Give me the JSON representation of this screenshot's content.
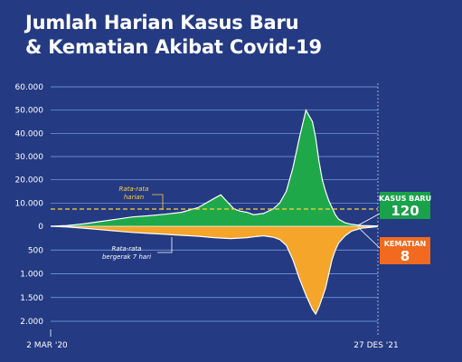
{
  "title_line1": "Jumlah Harian Kasus Baru",
  "title_line2": "& Kematian Akibat Covid-19",
  "colors": {
    "background": "#243a82",
    "cases": "#1fa84a",
    "deaths": "#f4a52a",
    "cases_badge": "#19a24a",
    "deaths_badge": "#f26a1f",
    "average_line": "#ffd23c",
    "gridline": "#7da6e8"
  },
  "chart_data": {
    "type": "area",
    "x_start_label": "2 MAR '20",
    "x_end_label": "27 DES '21",
    "upper_ticks": [
      "60.000",
      "50.000",
      "40.000",
      "30.000",
      "20.000",
      "10.000",
      "0"
    ],
    "lower_ticks": [
      "500",
      "1.000",
      "1.500",
      "2.000"
    ],
    "upper_ylim": [
      0,
      60000
    ],
    "lower_ylim": [
      0,
      2000
    ],
    "average_cases": 7400,
    "series": [
      {
        "key": "cases",
        "x": [
          0.0,
          0.05,
          0.1,
          0.15,
          0.2,
          0.25,
          0.3,
          0.35,
          0.4,
          0.45,
          0.5,
          0.52,
          0.54,
          0.56,
          0.58,
          0.6,
          0.62,
          0.65,
          0.68,
          0.7,
          0.72,
          0.74,
          0.76,
          0.78,
          0.8,
          0.81,
          0.82,
          0.83,
          0.84,
          0.85,
          0.86,
          0.87,
          0.88,
          0.9,
          0.92,
          0.95,
          1.0
        ],
        "values": [
          0,
          300,
          1000,
          2000,
          3000,
          4000,
          4500,
          5200,
          6000,
          8000,
          12000,
          13500,
          10500,
          7500,
          6500,
          6000,
          5000,
          5500,
          7500,
          10000,
          15000,
          25000,
          38000,
          50000,
          45000,
          38000,
          28000,
          20000,
          15000,
          11000,
          8000,
          5000,
          3000,
          1500,
          800,
          300,
          120
        ]
      },
      {
        "key": "deaths",
        "x": [
          0.0,
          0.05,
          0.1,
          0.15,
          0.2,
          0.25,
          0.3,
          0.35,
          0.4,
          0.45,
          0.5,
          0.55,
          0.6,
          0.62,
          0.65,
          0.68,
          0.7,
          0.72,
          0.74,
          0.76,
          0.78,
          0.8,
          0.81,
          0.82,
          0.83,
          0.84,
          0.85,
          0.86,
          0.87,
          0.88,
          0.9,
          0.92,
          0.95,
          1.0
        ],
        "values": [
          0,
          15,
          40,
          70,
          100,
          130,
          150,
          170,
          190,
          210,
          240,
          260,
          240,
          220,
          200,
          230,
          280,
          400,
          700,
          1100,
          1450,
          1750,
          1850,
          1700,
          1500,
          1300,
          1000,
          700,
          500,
          350,
          200,
          100,
          40,
          8
        ]
      }
    ],
    "annotations": [
      {
        "key": "average",
        "text": [
          "Rata-rata",
          "harian"
        ]
      },
      {
        "key": "moving_average",
        "text": [
          "Rata-rata",
          "bergerak 7 hari"
        ]
      }
    ],
    "latest": {
      "cases_label": "KASUS BARU",
      "cases_value": "120",
      "deaths_label": "KEMATIAN",
      "deaths_value": "8"
    }
  }
}
